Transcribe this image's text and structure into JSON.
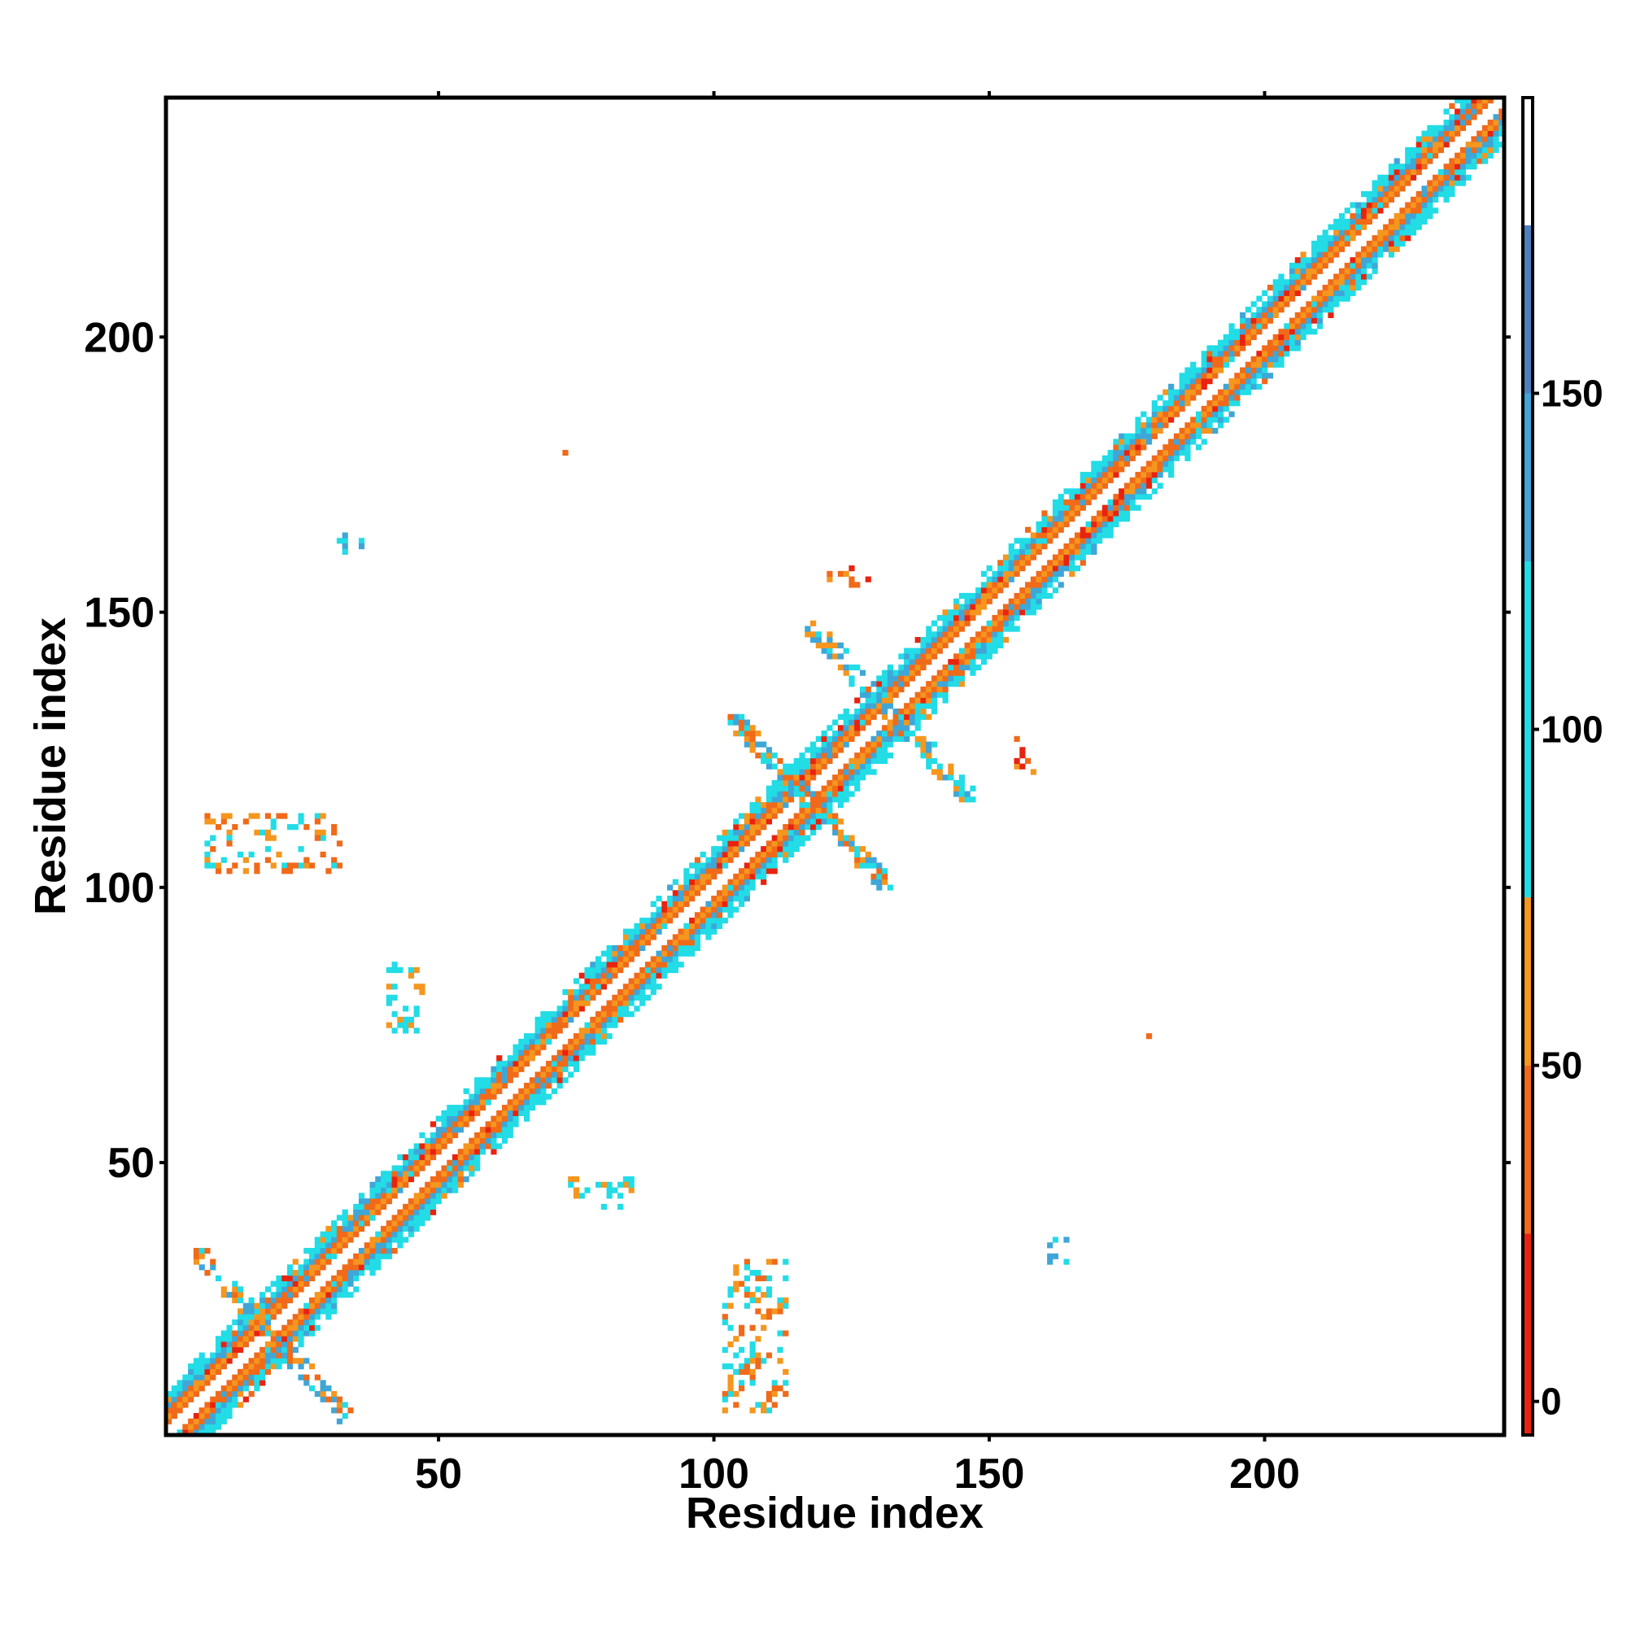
{
  "chart_data": {
    "type": "heatmap",
    "title": "",
    "xlabel": "Residue index",
    "ylabel": "Residue index",
    "xlim": [
      1,
      243
    ],
    "ylim": [
      1,
      243
    ],
    "x_ticks": [
      50,
      100,
      150,
      200
    ],
    "y_ticks": [
      50,
      100,
      150,
      200
    ],
    "x_tick_labels": [
      "50",
      "100",
      "150",
      "200"
    ],
    "y_tick_labels": [
      "50",
      "100",
      "150",
      "200"
    ],
    "grid": false,
    "colorbar": {
      "min": -5,
      "max": 194,
      "ticks": [
        0,
        50,
        100,
        150
      ],
      "tick_labels": [
        "0",
        "50",
        "100",
        "150"
      ],
      "segments": [
        {
          "from": -5,
          "to": 25,
          "color": "#e8230f"
        },
        {
          "from": 25,
          "to": 50,
          "color": "#f06a1a"
        },
        {
          "from": 50,
          "to": 75,
          "color": "#f5961e"
        },
        {
          "from": 75,
          "to": 125,
          "color": "#22dce6"
        },
        {
          "from": 125,
          "to": 150,
          "color": "#3fa6d8"
        },
        {
          "from": 150,
          "to": 175,
          "color": "#4f7fbf"
        },
        {
          "from": 175,
          "to": 194,
          "color": "#ffffff"
        }
      ]
    },
    "diagonal_band": {
      "half_width": 8,
      "range": [
        1,
        243
      ]
    },
    "contact_clusters": [
      {
        "x": [
          6,
          34
        ],
        "y": [
          3,
          34
        ],
        "pattern": "cross",
        "colors": [
          "#22dce6",
          "#3fa6d8",
          "#f5961e",
          "#f06a1a"
        ]
      },
      {
        "x": [
          103,
          132
        ],
        "y": [
          100,
          131
        ],
        "pattern": "cross",
        "colors": [
          "#22dce6",
          "#3fa6d8",
          "#f5961e",
          "#f06a1a"
        ]
      },
      {
        "x": [
          117,
          147
        ],
        "y": [
          116,
          148
        ],
        "pattern": "cross",
        "colors": [
          "#22dce6",
          "#3fa6d8",
          "#f5961e"
        ]
      },
      {
        "x": [
          8,
          32
        ],
        "y": [
          103,
          113
        ],
        "pattern": "blob",
        "colors": [
          "#22dce6",
          "#f5961e",
          "#f06a1a"
        ]
      },
      {
        "x": [
          102,
          113
        ],
        "y": [
          5,
          32
        ],
        "pattern": "blob",
        "colors": [
          "#22dce6",
          "#f5961e",
          "#f06a1a"
        ]
      },
      {
        "x": [
          41,
          47
        ],
        "y": [
          74,
          86
        ],
        "pattern": "blob",
        "colors": [
          "#22dce6",
          "#f5961e"
        ]
      },
      {
        "x": [
          74,
          85
        ],
        "y": [
          42,
          47
        ],
        "pattern": "blob",
        "colors": [
          "#22dce6",
          "#f5961e"
        ]
      },
      {
        "x": [
          121,
          128
        ],
        "y": [
          155,
          158
        ],
        "pattern": "blob",
        "colors": [
          "#f06a1a",
          "#e8230f",
          "#f5961e"
        ]
      },
      {
        "x": [
          155,
          158
        ],
        "y": [
          121,
          128
        ],
        "pattern": "blob",
        "colors": [
          "#f06a1a",
          "#e8230f",
          "#f5961e"
        ]
      },
      {
        "x": [
          32,
          36
        ],
        "y": [
          161,
          164
        ],
        "pattern": "blob",
        "colors": [
          "#22dce6",
          "#3fa6d8"
        ]
      },
      {
        "x": [
          161,
          164
        ],
        "y": [
          32,
          36
        ],
        "pattern": "blob",
        "colors": [
          "#22dce6",
          "#3fa6d8"
        ]
      },
      {
        "x": [
          73,
          73
        ],
        "y": [
          179,
          179
        ],
        "pattern": "blob",
        "colors": [
          "#f06a1a"
        ]
      },
      {
        "x": [
          179,
          179
        ],
        "y": [
          73,
          73
        ],
        "pattern": "blob",
        "colors": [
          "#f06a1a"
        ]
      }
    ]
  }
}
